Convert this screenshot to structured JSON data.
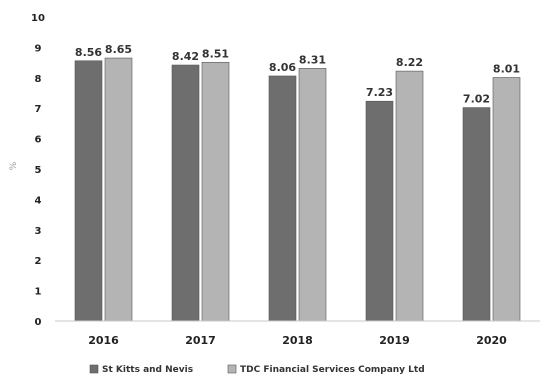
{
  "chart_data": {
    "type": "bar",
    "title": "",
    "xlabel": "",
    "ylabel": "%",
    "ylim": [
      0,
      10
    ],
    "yticks": [
      0,
      1,
      2,
      3,
      4,
      5,
      6,
      7,
      8,
      9,
      10
    ],
    "ytick_labels": [
      "0",
      "1",
      "2",
      "3",
      "4",
      "5",
      "6",
      "7",
      "8",
      "9",
      "10"
    ],
    "grid": false,
    "legend_position": "bottom",
    "categories": [
      "2016",
      "2017",
      "2018",
      "2019",
      "2020"
    ],
    "series": [
      {
        "name": "St Kitts and Nevis",
        "color": "#6e6e6e",
        "values": [
          8.56,
          8.42,
          8.06,
          7.23,
          7.02
        ],
        "labels": [
          "8.56",
          "8.42",
          "8.06",
          "7.23",
          "7.02"
        ]
      },
      {
        "name": "TDC Financial Services Company Ltd",
        "color": "#b4b4b4",
        "values": [
          8.65,
          8.51,
          8.31,
          8.22,
          8.01
        ],
        "labels": [
          "8.65",
          "8.51",
          "8.31",
          "8.22",
          "8.01"
        ]
      }
    ]
  }
}
